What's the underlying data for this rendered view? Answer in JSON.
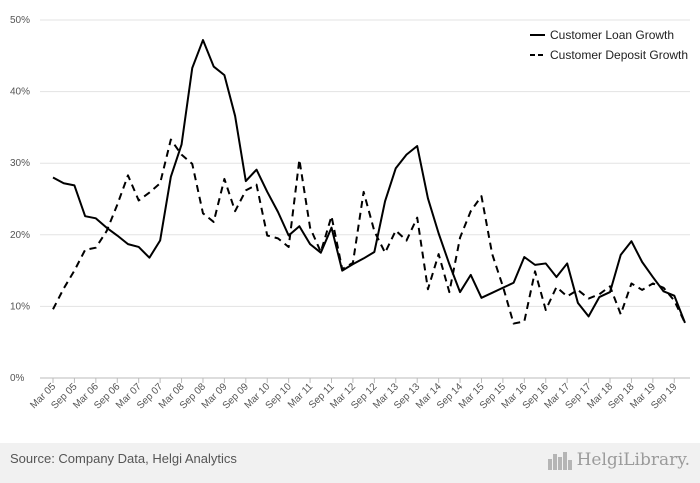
{
  "chart_data": {
    "type": "line",
    "x": [
      "Mar 05",
      "Jun 05",
      "Sep 05",
      "Dec 05",
      "Mar 06",
      "Jun 06",
      "Sep 06",
      "Dec 06",
      "Mar 07",
      "Jun 07",
      "Sep 07",
      "Dec 07",
      "Mar 08",
      "Jun 08",
      "Sep 08",
      "Dec 08",
      "Mar 09",
      "Jun 09",
      "Sep 09",
      "Dec 09",
      "Mar 10",
      "Jun 10",
      "Sep 10",
      "Dec 10",
      "Mar 11",
      "Jun 11",
      "Sep 11",
      "Dec 11",
      "Mar 12",
      "Jun 12",
      "Sep 12",
      "Dec 12",
      "Mar 13",
      "Jun 13",
      "Sep 13",
      "Dec 13",
      "Mar 14",
      "Jun 14",
      "Sep 14",
      "Dec 14",
      "Mar 15",
      "Jun 15",
      "Sep 15",
      "Dec 15",
      "Mar 16",
      "Jun 16",
      "Sep 16",
      "Dec 16",
      "Mar 17",
      "Jun 17",
      "Sep 17",
      "Dec 17",
      "Mar 18",
      "Jun 18",
      "Sep 18",
      "Dec 18",
      "Mar 19",
      "Jun 19",
      "Sep 19",
      "Dec 19"
    ],
    "x_tick_labels": [
      "Mar 05",
      "Sep 05",
      "Mar 06",
      "Sep 06",
      "Mar 07",
      "Sep 07",
      "Mar 08",
      "Sep 08",
      "Mar 09",
      "Sep 09",
      "Mar 10",
      "Sep 10",
      "Mar 11",
      "Sep 11",
      "Mar 12",
      "Sep 12",
      "Mar 13",
      "Sep 13",
      "Mar 14",
      "Sep 14",
      "Mar 15",
      "Sep 15",
      "Mar 16",
      "Sep 16",
      "Mar 17",
      "Sep 17",
      "Mar 18",
      "Sep 18",
      "Mar 19",
      "Sep 19"
    ],
    "y_ticks": [
      0,
      10,
      20,
      30,
      40,
      50
    ],
    "y_tick_labels": [
      "0%",
      "10%",
      "20%",
      "30%",
      "40%",
      "50%"
    ],
    "ylim": [
      0,
      50
    ],
    "grid": "horizontal",
    "legend_position": "top-right",
    "title": "",
    "xlabel": "",
    "ylabel": "",
    "series": [
      {
        "name": "Customer Loan Growth",
        "style": "solid",
        "color": "#000000",
        "values": [
          28.0,
          27.2,
          26.9,
          22.6,
          22.3,
          21.0,
          19.9,
          18.7,
          18.3,
          16.8,
          19.2,
          28.1,
          32.6,
          43.3,
          47.2,
          43.5,
          42.3,
          36.6,
          27.5,
          29.1,
          26.0,
          23.2,
          19.9,
          21.2,
          18.7,
          17.5,
          21.0,
          15.0,
          15.9,
          16.7,
          17.6,
          24.7,
          29.3,
          31.2,
          32.4,
          25.1,
          20.2,
          15.9,
          12.0,
          14.4,
          11.2,
          11.9,
          12.6,
          13.3,
          16.9,
          15.8,
          16.0,
          14.1,
          16.0,
          10.5,
          8.6,
          11.3,
          12.0,
          17.2,
          19.1,
          16.2,
          14.1,
          12.1,
          11.5,
          7.7
        ]
      },
      {
        "name": "Customer Deposit Growth",
        "style": "dashed",
        "color": "#000000",
        "values": [
          9.6,
          12.5,
          15.0,
          17.9,
          18.2,
          20.5,
          24.2,
          28.3,
          24.8,
          25.9,
          27.2,
          33.3,
          31.2,
          29.9,
          23.0,
          21.8,
          27.8,
          23.3,
          26.2,
          27.0,
          19.9,
          19.5,
          18.3,
          30.5,
          21.0,
          17.6,
          22.6,
          15.2,
          16.1,
          26.0,
          20.5,
          17.5,
          20.6,
          19.2,
          22.4,
          12.4,
          17.3,
          12.0,
          19.6,
          23.3,
          25.4,
          17.3,
          12.8,
          7.6,
          7.9,
          14.9,
          9.5,
          12.7,
          11.4,
          12.3,
          11.1,
          11.7,
          12.8,
          8.9,
          13.2,
          12.3,
          13.2,
          12.6,
          10.8,
          7.7
        ]
      }
    ]
  },
  "footer": {
    "source": "Source: Company Data, Helgi Analytics",
    "logo_text": "HelgiLibrary."
  }
}
